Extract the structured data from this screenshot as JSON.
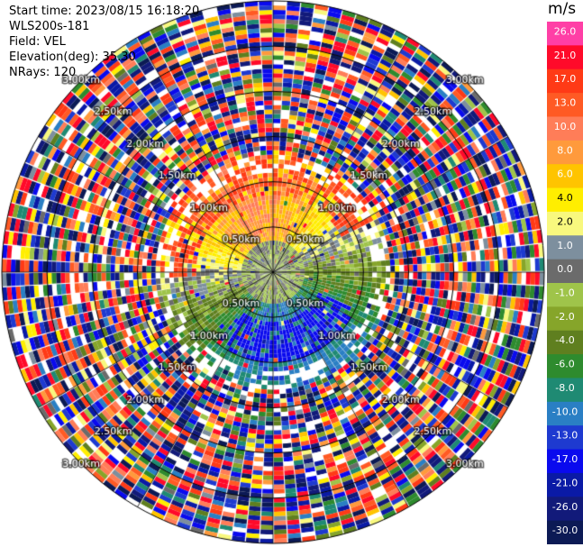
{
  "header": {
    "start_time": "Start time: 2023/08/15 16:18:20",
    "instrument": "WLS200s-181",
    "field": "Field: VEL",
    "elevation": "Elevation(deg): 35.30",
    "nrays": "NRays: 120"
  },
  "colorbar": {
    "unit": "m/s",
    "ticks": [
      "26.0",
      "21.0",
      "17.0",
      "13.0",
      "10.0",
      "8.0",
      "6.0",
      "4.0",
      "2.0",
      "1.0",
      "0.0",
      "-1.0",
      "-2.0",
      "-4.0",
      "-6.0",
      "-8.0",
      "-10.0",
      "-13.0",
      "-17.0",
      "-21.0",
      "-26.0",
      "-30.0"
    ],
    "colors": [
      "#ff3fa6",
      "#ff0a2a",
      "#ff3a16",
      "#ff5a24",
      "#ff7d58",
      "#ff9a3c",
      "#ffc400",
      "#ffee00",
      "#f8f87e",
      "#7d8f9e",
      "#6b6b6b",
      "#9fc44a",
      "#86a52a",
      "#5f7f1f",
      "#2e8b2e",
      "#1f8a73",
      "#2a7fc4",
      "#1e3ad0",
      "#0a0aee",
      "#0a1aa6",
      "#121a7a",
      "#0c1a55"
    ]
  },
  "chart_data": {
    "type": "heatmap",
    "projection": "polar",
    "field": "VEL",
    "units": "m/s",
    "elevation_deg": 35.3,
    "n_rays": 120,
    "range_rings_km": [
      0.5,
      1.0,
      1.5,
      2.0,
      2.5,
      3.0
    ],
    "ring_labels": [
      "0.50km",
      "1.00km",
      "1.50km",
      "2.00km",
      "2.50km",
      "3.00km"
    ],
    "color_scale": [
      26.0,
      21.0,
      17.0,
      13.0,
      10.0,
      8.0,
      6.0,
      4.0,
      2.0,
      1.0,
      0.0,
      -1.0,
      -2.0,
      -4.0,
      -6.0,
      -8.0,
      -10.0,
      -13.0,
      -17.0,
      -21.0,
      -26.0,
      -30.0
    ],
    "pattern": "Near-range (<1 km) winds: yellow/orange (positive, ~2-13 m/s) toward west and north, olive-green (negative, ~-2 to -6 m/s) toward east, blue (~-13 m/s) to south-east, grey (~0 m/s) at center; beyond ~1.3 km data is noisy across full color range."
  }
}
